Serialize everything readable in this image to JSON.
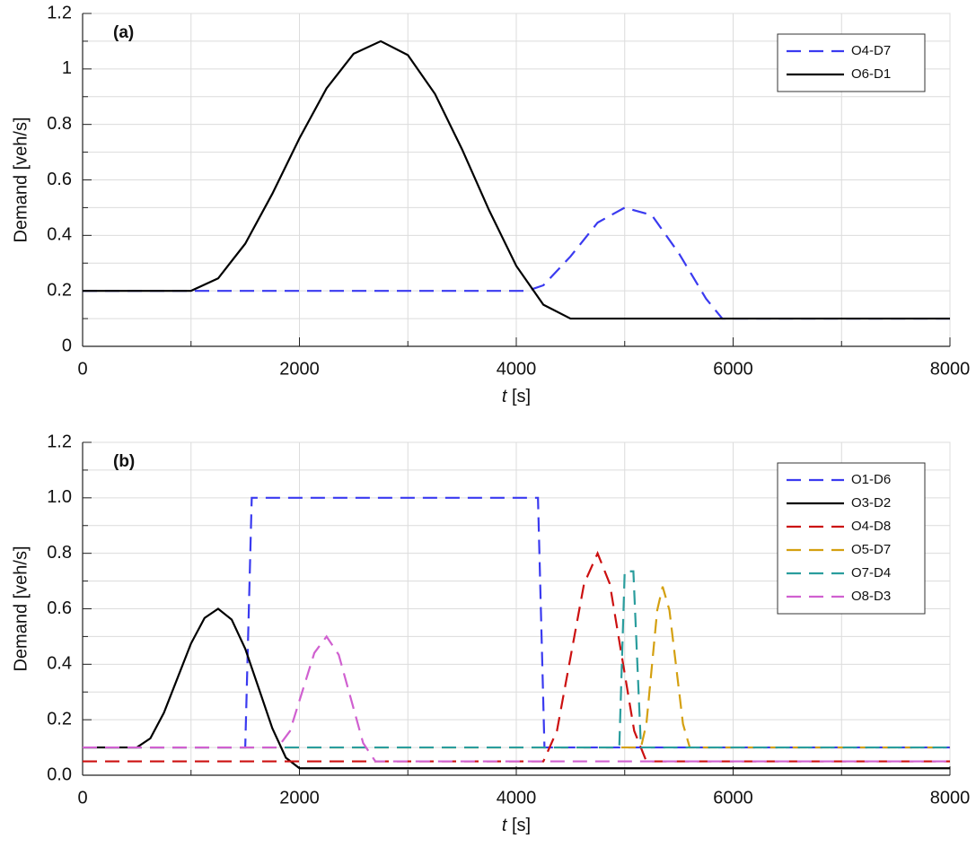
{
  "chart_data": [
    {
      "type": "line",
      "panel_label": "(a)",
      "ylabel": "Demand [veh/s]",
      "xlabel": {
        "symbol": "t",
        "unit": "[s]"
      },
      "xlim": [
        0,
        8000
      ],
      "xticks": [
        0,
        2000,
        4000,
        6000,
        8000
      ],
      "minor_xticks": [
        1000,
        3000,
        5000,
        7000
      ],
      "ylim": [
        0,
        1.2
      ],
      "yticks": [
        0,
        0.2,
        0.4,
        0.6,
        0.8,
        1,
        1.2
      ],
      "minor_yticks": [
        0.1,
        0.3,
        0.5,
        0.7,
        0.9,
        1.1
      ],
      "grid": true,
      "legend": "upper right",
      "series": [
        {
          "name": "O4-D7",
          "color": "#3a3af0",
          "dashed": true,
          "x": [
            0,
            4100,
            4250,
            4500,
            4750,
            5000,
            5250,
            5500,
            5750,
            5900,
            8000
          ],
          "values": [
            0.2,
            0.2,
            0.22,
            0.324,
            0.446,
            0.5,
            0.473,
            0.335,
            0.172,
            0.1,
            0.1
          ]
        },
        {
          "name": "O6-D1",
          "color": "#000000",
          "dashed": false,
          "x": [
            0,
            1000,
            1250,
            1500,
            1750,
            2000,
            2250,
            2500,
            2750,
            3000,
            3250,
            3500,
            3750,
            4000,
            4250,
            4500,
            8000
          ],
          "values": [
            0.2,
            0.2,
            0.245,
            0.37,
            0.55,
            0.75,
            0.93,
            1.055,
            1.1,
            1.05,
            0.91,
            0.71,
            0.49,
            0.29,
            0.15,
            0.1,
            0.1
          ]
        }
      ]
    },
    {
      "type": "line",
      "panel_label": "(b)",
      "ylabel": "Demand [veh/s]",
      "xlabel": {
        "symbol": "t",
        "unit": "[s]"
      },
      "xlim": [
        0,
        8000
      ],
      "xticks": [
        0,
        2000,
        4000,
        6000,
        8000
      ],
      "minor_xticks": [
        1000,
        3000,
        5000,
        7000
      ],
      "ylim": [
        0,
        1.2
      ],
      "yticks": [
        {
          "value": 0,
          "label": "0.0"
        },
        0.2,
        0.4,
        0.6,
        0.8,
        {
          "value": 1,
          "label": "1.0"
        },
        1.2
      ],
      "minor_yticks": [
        0.1,
        0.3,
        0.5,
        0.7,
        0.9,
        1.1
      ],
      "grid": true,
      "legend": "upper right",
      "series": [
        {
          "name": "O1-D6",
          "color": "#3a3af0",
          "dashed": true,
          "x": [
            0,
            1500,
            1560,
            4200,
            4260,
            8000
          ],
          "values": [
            0.1,
            0.1,
            1.0,
            1.0,
            0.1,
            0.1
          ]
        },
        {
          "name": "O3-D2",
          "color": "#000000",
          "dashed": false,
          "x": [
            0,
            500,
            625,
            750,
            875,
            1000,
            1125,
            1250,
            1375,
            1500,
            1625,
            1750,
            1875,
            2000,
            8000
          ],
          "values": [
            0.1,
            0.1,
            0.133,
            0.225,
            0.35,
            0.475,
            0.567,
            0.6,
            0.561,
            0.456,
            0.313,
            0.169,
            0.063,
            0.025,
            0.025
          ]
        },
        {
          "name": "O4-D8",
          "color": "#cc1010",
          "dashed": true,
          "x": [
            0,
            4250,
            4375,
            4500,
            4625,
            4750,
            4862.5,
            4975,
            5087.5,
            5200,
            8000
          ],
          "values": [
            0.05,
            0.05,
            0.16,
            0.425,
            0.69,
            0.8,
            0.69,
            0.425,
            0.16,
            0.05,
            0.05
          ]
        },
        {
          "name": "O5-D7",
          "color": "#d4a010",
          "dashed": true,
          "x": [
            0,
            5150,
            5200,
            5250,
            5300,
            5350,
            5412.5,
            5475,
            5537.5,
            5600,
            8000
          ],
          "values": [
            0.1,
            0.1,
            0.185,
            0.39,
            0.595,
            0.68,
            0.595,
            0.39,
            0.185,
            0.1,
            0.1
          ]
        },
        {
          "name": "O7-D4",
          "color": "#2a9d9d",
          "dashed": true,
          "x": [
            0,
            4950,
            5000,
            5080,
            5150,
            8000
          ],
          "values": [
            0.1,
            0.1,
            0.735,
            0.735,
            0.1,
            0.1
          ]
        },
        {
          "name": "O8-D3",
          "color": "#d060d0",
          "dashed": true,
          "x": [
            0,
            1800,
            1912.5,
            2025,
            2137.5,
            2250,
            2362.5,
            2475,
            2587.5,
            2700,
            8000
          ],
          "values": [
            0.1,
            0.1,
            0.159,
            0.3,
            0.441,
            0.5,
            0.434,
            0.275,
            0.116,
            0.05,
            0.05
          ]
        }
      ]
    }
  ]
}
